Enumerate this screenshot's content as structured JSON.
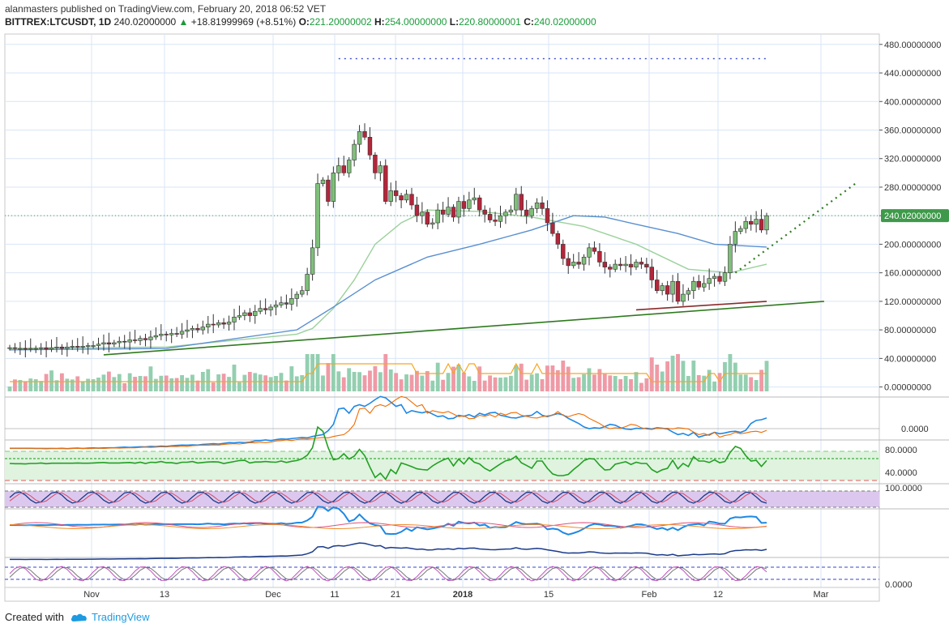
{
  "header": {
    "user": "alanmasters",
    "published_text": " published on TradingView.com, February 20, 2018 06:52 VET",
    "symbol": "BITTREX:LTCUSDT, 1D",
    "last": "240.02000000",
    "change_arrow": "▲",
    "change": "+18.81999969 (+8.51%)",
    "o_label": "O:",
    "o_value": "221.20000002",
    "h_label": "H:",
    "h_value": "254.00000000",
    "l_label": "L:",
    "l_value": "220.80000001",
    "c_label": "C:",
    "c_value": "240.02000000"
  },
  "footer": {
    "created_with": "Created with",
    "brand": "TradingView"
  },
  "price_tag": "240.02000000",
  "colors": {
    "up": "#57a35a",
    "down": "#c0283a",
    "grid": "#d8e6f6",
    "tag": "#3e9a4a",
    "trend": "#2f7a1f",
    "ma_green": "#9bd19b",
    "ma_blue": "#5a8fd0",
    "vol_up": "#93cfb0",
    "vol_down": "#ef9aa6",
    "vol_ma": "#f5a623"
  },
  "chart_data": {
    "type": "candlestick",
    "symbol": "BITTREX:LTCUSDT",
    "interval": "1D",
    "x_tick_labels": [
      "Nov",
      "13",
      "Dec",
      "11",
      "21",
      "2018",
      "15",
      "Feb",
      "12",
      "Mar"
    ],
    "y_tick_labels": [
      "480.00000000",
      "440.00000000",
      "400.00000000",
      "360.00000000",
      "320.00000000",
      "280.00000000",
      "240.00000000",
      "200.00000000",
      "160.00000000",
      "120.00000000",
      "80.00000000",
      "40.00000000",
      "0.00000000"
    ],
    "ylim": [
      -5,
      490
    ],
    "last_price": 240.02,
    "closes": [
      55,
      54,
      54,
      53,
      54,
      54,
      55,
      53,
      55,
      56,
      54,
      56,
      57,
      56,
      57,
      58,
      58,
      60,
      62,
      60,
      62,
      64,
      63,
      66,
      65,
      68,
      66,
      70,
      72,
      74,
      73,
      75,
      74,
      78,
      80,
      82,
      80,
      84,
      88,
      87,
      90,
      88,
      91,
      98,
      100,
      104,
      100,
      106,
      110,
      108,
      112,
      115,
      118,
      116,
      124,
      130,
      135,
      158,
      195,
      285,
      290,
      260,
      300,
      310,
      300,
      318,
      340,
      358,
      350,
      325,
      300,
      310,
      260,
      275,
      268,
      262,
      270,
      255,
      240,
      245,
      228,
      230,
      248,
      242,
      252,
      238,
      260,
      250,
      262,
      265,
      248,
      242,
      234,
      232,
      240,
      245,
      248,
      270,
      248,
      240,
      250,
      258,
      250,
      230,
      215,
      200,
      180,
      170,
      175,
      172,
      182,
      195,
      190,
      175,
      168,
      165,
      172,
      170,
      172,
      168,
      175,
      172,
      168,
      150,
      135,
      142,
      130,
      148,
      120,
      130,
      135,
      148,
      140,
      145,
      152,
      155,
      148,
      160,
      200,
      218,
      222,
      232,
      228,
      235,
      220,
      240.02
    ],
    "ma_green_points": [
      [
        0,
        54
      ],
      [
        30,
        56
      ],
      [
        55,
        74
      ],
      [
        58,
        82
      ],
      [
        62,
        110
      ],
      [
        66,
        150
      ],
      [
        70,
        200
      ],
      [
        75,
        230
      ],
      [
        80,
        248
      ],
      [
        90,
        246
      ],
      [
        100,
        238
      ],
      [
        110,
        225
      ],
      [
        120,
        200
      ],
      [
        130,
        165
      ],
      [
        138,
        160
      ],
      [
        145,
        172
      ]
    ],
    "ma_blue_points": [
      [
        0,
        52
      ],
      [
        30,
        54
      ],
      [
        55,
        80
      ],
      [
        62,
        112
      ],
      [
        70,
        150
      ],
      [
        80,
        182
      ],
      [
        90,
        200
      ],
      [
        100,
        220
      ],
      [
        108,
        240
      ],
      [
        114,
        238
      ],
      [
        120,
        228
      ],
      [
        128,
        215
      ],
      [
        135,
        200
      ],
      [
        145,
        196
      ]
    ],
    "trendline_points": [
      [
        18,
        45
      ],
      [
        156,
        120
      ]
    ],
    "projection_points": [
      [
        139,
        160
      ],
      [
        162,
        285
      ]
    ],
    "support_points": [
      [
        120,
        108
      ],
      [
        145,
        120
      ]
    ],
    "resistance_level": 460,
    "volume_scale": "relative",
    "rsi_levels": [
      80,
      40
    ],
    "macd_zero": 0
  }
}
